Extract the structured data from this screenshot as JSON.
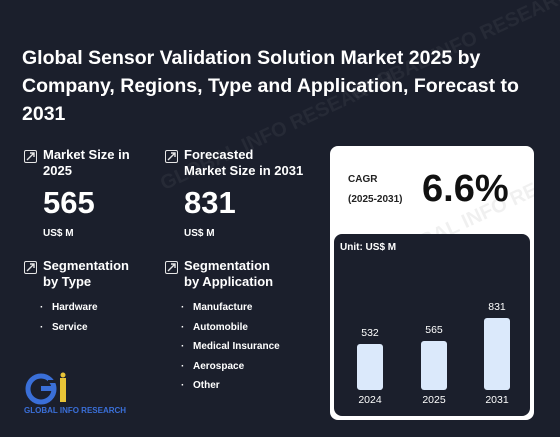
{
  "title": "Global Sensor Validation Solution Market 2025 by Company, Regions, Type and Application, Forecast to 2031",
  "market_size": {
    "label_line1": "Market Size in",
    "label_line2": "2025",
    "value": "565",
    "unit": "US$ M"
  },
  "forecast": {
    "label_line1": "Forecasted",
    "label_line2": "Market Size in 2031",
    "value": "831",
    "unit": "US$ M"
  },
  "seg_type": {
    "label_line1": "Segmentation",
    "label_line2": "by Type",
    "items": [
      "Hardware",
      "Service"
    ]
  },
  "seg_app": {
    "label_line1": "Segmentation",
    "label_line2": "by Application",
    "items": [
      "Manufacture",
      "Automobile",
      "Medical Insurance",
      "Aerospace",
      "Other"
    ]
  },
  "cagr": {
    "label_line1": "CAGR",
    "label_line2": "(2025-2031)",
    "value": "6.6%"
  },
  "logo": {
    "text": "GLOBAL INFO RESEARCH"
  },
  "chart_data": {
    "type": "bar",
    "unit_label": "Unit: US$ M",
    "categories": [
      "2024",
      "2025",
      "2031"
    ],
    "values": [
      532,
      565,
      831
    ],
    "data_labels": [
      "532",
      "565",
      "831"
    ],
    "bar_color": "#dbe9fb"
  },
  "colors": {
    "background": "#1b1f2c",
    "card": "#ffffff",
    "bar": "#dbe9fb",
    "logo": "#3a6fd8"
  }
}
